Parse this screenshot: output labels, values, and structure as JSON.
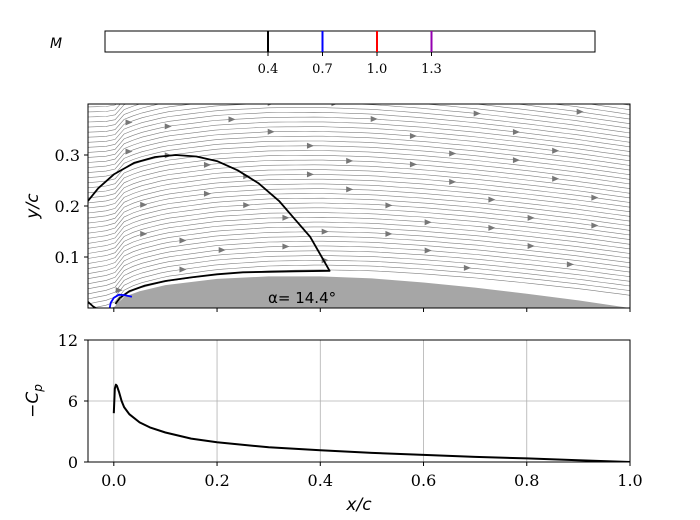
{
  "chart_data": [
    {
      "type": "colorbar",
      "label": "M",
      "ticks": [
        {
          "value": 0.4,
          "label": "0.4",
          "color": "#000000"
        },
        {
          "value": 0.7,
          "label": "0.7",
          "color": "#0000ff"
        },
        {
          "value": 1.0,
          "label": "1.0",
          "color": "#ff0000"
        },
        {
          "value": 1.3,
          "label": "1.3",
          "color": "#9400b0"
        }
      ]
    },
    {
      "type": "line",
      "ylabel": "y/c",
      "xlim": [
        -0.05,
        1.0
      ],
      "ylim": [
        0.0,
        0.4
      ],
      "yticks": [
        {
          "value": 0.1,
          "label": "0.1"
        },
        {
          "value": 0.2,
          "label": "0.2"
        },
        {
          "value": 0.3,
          "label": "0.3"
        }
      ],
      "annotation": {
        "text": "α= 14.4°",
        "x": 0.3,
        "y": 0.012
      },
      "streamlines": "present",
      "airfoil_surface": [
        [
          0.0,
          0.0
        ],
        [
          0.02,
          0.022
        ],
        [
          0.05,
          0.033
        ],
        [
          0.1,
          0.045
        ],
        [
          0.2,
          0.057
        ],
        [
          0.3,
          0.062
        ],
        [
          0.4,
          0.062
        ],
        [
          0.5,
          0.058
        ],
        [
          0.6,
          0.05
        ],
        [
          0.7,
          0.04
        ],
        [
          0.8,
          0.028
        ],
        [
          0.9,
          0.015
        ],
        [
          1.0,
          0.0
        ]
      ],
      "series": [
        {
          "color": "#000000",
          "points": [
            [
              -0.05,
              0.21
            ],
            [
              -0.03,
              0.235
            ],
            [
              0.0,
              0.262
            ],
            [
              0.04,
              0.285
            ],
            [
              0.08,
              0.296
            ],
            [
              0.12,
              0.3
            ],
            [
              0.16,
              0.297
            ],
            [
              0.2,
              0.288
            ],
            [
              0.24,
              0.27
            ],
            [
              0.28,
              0.245
            ],
            [
              0.32,
              0.21
            ],
            [
              0.35,
              0.175
            ],
            [
              0.38,
              0.14
            ],
            [
              0.4,
              0.105
            ],
            [
              0.418,
              0.073
            ],
            [
              0.35,
              0.072
            ],
            [
              0.3,
              0.071
            ],
            [
              0.25,
              0.07
            ],
            [
              0.2,
              0.066
            ],
            [
              0.15,
              0.06
            ],
            [
              0.1,
              0.053
            ],
            [
              0.06,
              0.044
            ],
            [
              0.03,
              0.033
            ],
            [
              0.012,
              0.02
            ],
            [
              0.003,
              0.008
            ]
          ]
        },
        {
          "color": "#000000",
          "points": [
            [
              -0.05,
              0.012
            ],
            [
              -0.04,
              0.003
            ],
            [
              -0.035,
              0.0
            ]
          ]
        },
        {
          "color": "#0000ff",
          "points": [
            [
              -0.008,
              0.0
            ],
            [
              -0.006,
              0.01
            ],
            [
              0.0,
              0.02
            ],
            [
              0.01,
              0.026
            ],
            [
              0.022,
              0.025
            ],
            [
              0.035,
              0.022
            ]
          ]
        }
      ]
    },
    {
      "type": "line",
      "xlabel": "x/c",
      "ylabel": "−C_p",
      "xlim": [
        -0.05,
        1.0
      ],
      "ylim": [
        0,
        12
      ],
      "grid": true,
      "xticks": [
        {
          "value": 0.0,
          "label": "0.0"
        },
        {
          "value": 0.2,
          "label": "0.2"
        },
        {
          "value": 0.4,
          "label": "0.4"
        },
        {
          "value": 0.6,
          "label": "0.6"
        },
        {
          "value": 0.8,
          "label": "0.8"
        },
        {
          "value": 1.0,
          "label": "1.0"
        }
      ],
      "yticks": [
        {
          "value": 0,
          "label": "0"
        },
        {
          "value": 6,
          "label": "6"
        },
        {
          "value": 12,
          "label": "12"
        }
      ],
      "series": [
        {
          "color": "#000000",
          "x": [
            0.0,
            0.002,
            0.004,
            0.006,
            0.01,
            0.015,
            0.02,
            0.03,
            0.05,
            0.07,
            0.1,
            0.15,
            0.2,
            0.3,
            0.4,
            0.5,
            0.6,
            0.7,
            0.8,
            0.9,
            1.0
          ],
          "y": [
            4.8,
            7.2,
            7.6,
            7.5,
            6.9,
            6.0,
            5.4,
            4.7,
            3.9,
            3.4,
            2.9,
            2.3,
            1.95,
            1.45,
            1.15,
            0.9,
            0.7,
            0.5,
            0.35,
            0.18,
            0.0
          ]
        }
      ]
    }
  ]
}
